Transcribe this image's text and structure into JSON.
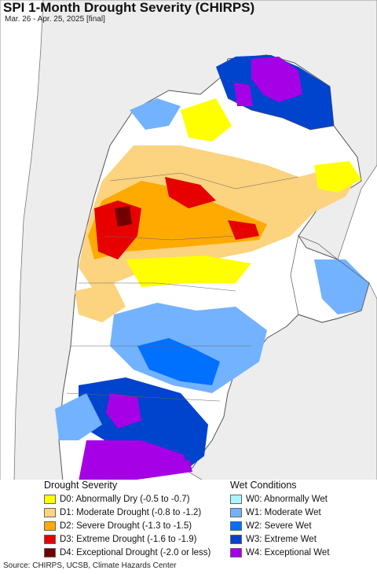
{
  "title": "SPI 1-Month Drought Severity (CHIRPS)",
  "subtitle": "Mar. 26 - Apr. 25, 2025 [final]",
  "colors": {
    "ocean": "#ffffff",
    "land_outside": "#eeeeee",
    "no_change": "#ffffff",
    "D0": "#ffff00",
    "D1": "#fcd37f",
    "D2": "#ffaa00",
    "D3": "#e60000",
    "D4": "#730000",
    "W0": "#aaf5ff",
    "W1": "#73b2ff",
    "W2": "#0070ff",
    "W3": "#0043cc",
    "W4": "#a500e6"
  },
  "legend": {
    "drought_heading": "Drought Severity",
    "wet_heading": "Wet Conditions",
    "drought": [
      {
        "key": "D0",
        "label": "D0: Abnormally Dry (-0.5 to -0.7)"
      },
      {
        "key": "D1",
        "label": "D1: Moderate Drought (-0.8 to -1.2)"
      },
      {
        "key": "D2",
        "label": "D2: Severe Drought (-1.3 to -1.5)"
      },
      {
        "key": "D3",
        "label": "D3: Extreme Drought (-1.6 to -1.9)"
      },
      {
        "key": "D4",
        "label": "D4: Exceptional Drought (-2.0 or less)"
      }
    ],
    "wet": [
      {
        "key": "W0",
        "label": "W0: Abnormally Wet"
      },
      {
        "key": "W1",
        "label": "W1: Moderate Wet"
      },
      {
        "key": "W2",
        "label": "W2: Severe Wet"
      },
      {
        "key": "W3",
        "label": "W3: Extreme Wet"
      },
      {
        "key": "W4",
        "label": "W4: Exceptional Wet"
      }
    ]
  },
  "source": "Source: CHIRPS, UCSB, Climate Hazards Center"
}
